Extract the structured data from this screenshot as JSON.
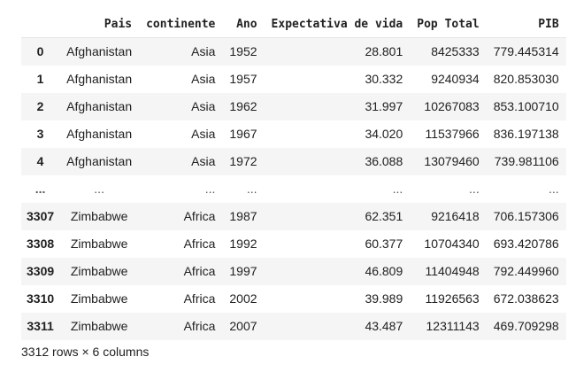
{
  "columns": [
    "",
    "Pais",
    "continente",
    "Ano",
    "Expectativa de vida",
    "Pop Total",
    "PIB"
  ],
  "rows": [
    {
      "index": "0",
      "pais": "Afghanistan",
      "continente": "Asia",
      "ano": "1952",
      "expectativa": "28.801",
      "pop": "8425333",
      "pib": "779.445314"
    },
    {
      "index": "1",
      "pais": "Afghanistan",
      "continente": "Asia",
      "ano": "1957",
      "expectativa": "30.332",
      "pop": "9240934",
      "pib": "820.853030"
    },
    {
      "index": "2",
      "pais": "Afghanistan",
      "continente": "Asia",
      "ano": "1962",
      "expectativa": "31.997",
      "pop": "10267083",
      "pib": "853.100710"
    },
    {
      "index": "3",
      "pais": "Afghanistan",
      "continente": "Asia",
      "ano": "1967",
      "expectativa": "34.020",
      "pop": "11537966",
      "pib": "836.197138"
    },
    {
      "index": "4",
      "pais": "Afghanistan",
      "continente": "Asia",
      "ano": "1972",
      "expectativa": "36.088",
      "pop": "13079460",
      "pib": "739.981106"
    },
    {
      "index": "...",
      "pais": "...",
      "continente": "...",
      "ano": "...",
      "expectativa": "...",
      "pop": "...",
      "pib": "..."
    },
    {
      "index": "3307",
      "pais": "Zimbabwe",
      "continente": "Africa",
      "ano": "1987",
      "expectativa": "62.351",
      "pop": "9216418",
      "pib": "706.157306"
    },
    {
      "index": "3308",
      "pais": "Zimbabwe",
      "continente": "Africa",
      "ano": "1992",
      "expectativa": "60.377",
      "pop": "10704340",
      "pib": "693.420786"
    },
    {
      "index": "3309",
      "pais": "Zimbabwe",
      "continente": "Africa",
      "ano": "1997",
      "expectativa": "46.809",
      "pop": "11404948",
      "pib": "792.449960"
    },
    {
      "index": "3310",
      "pais": "Zimbabwe",
      "continente": "Africa",
      "ano": "2002",
      "expectativa": "39.989",
      "pop": "11926563",
      "pib": "672.038623"
    },
    {
      "index": "3311",
      "pais": "Zimbabwe",
      "continente": "Africa",
      "ano": "2007",
      "expectativa": "43.487",
      "pop": "12311143",
      "pib": "469.709298"
    }
  ],
  "shape_note": "3312 rows × 6 columns"
}
